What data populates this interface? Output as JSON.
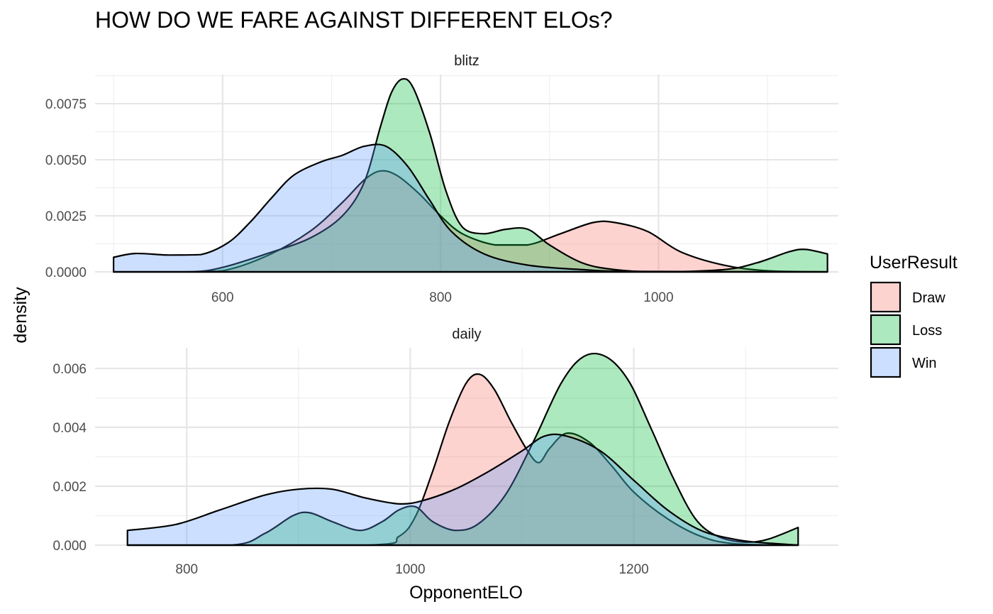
{
  "chart_data": {
    "type": "area",
    "subtype": "density",
    "title": "HOW DO WE FARE AGAINST DIFFERENT ELOs?",
    "xlabel": "OpponentELO",
    "ylabel": "density",
    "grid": true,
    "legend": {
      "title": "UserResult",
      "position": "right",
      "entries": [
        {
          "name": "Draw",
          "color": "#F8766D"
        },
        {
          "name": "Loss",
          "color": "#00BA38"
        },
        {
          "name": "Win",
          "color": "#619CFF"
        }
      ]
    },
    "panels": [
      {
        "name": "blitz",
        "xlim": [
          483,
          1165
        ],
        "ylim": [
          0,
          0.0088
        ],
        "x_ticks": [
          600,
          800,
          1000
        ],
        "y_ticks": [
          0,
          0.0025,
          0.005,
          0.0075
        ],
        "y_tick_labels": [
          "0.0000",
          "0.0025",
          "0.0050",
          "0.0075"
        ],
        "series": [
          {
            "name": "Draw",
            "points": [
              [
                500,
                0
              ],
              [
                560,
                0
              ],
              [
                600,
                5e-05
              ],
              [
                640,
                0.0007
              ],
              [
                680,
                0.0018
              ],
              [
                710,
                0.0031
              ],
              [
                730,
                0.0041
              ],
              [
                745,
                0.0045
              ],
              [
                760,
                0.0043
              ],
              [
                780,
                0.0035
              ],
              [
                800,
                0.0025
              ],
              [
                820,
                0.0017
              ],
              [
                850,
                0.0012
              ],
              [
                880,
                0.0012
              ],
              [
                910,
                0.0017
              ],
              [
                940,
                0.0022
              ],
              [
                960,
                0.0022
              ],
              [
                990,
                0.0018
              ],
              [
                1020,
                0.0009
              ],
              [
                1060,
                0.0003
              ],
              [
                1100,
                5e-05
              ],
              [
                1155,
                0
              ]
            ]
          },
          {
            "name": "Loss",
            "points": [
              [
                500,
                0
              ],
              [
                570,
                0
              ],
              [
                600,
                0.0002
              ],
              [
                640,
                0.0008
              ],
              [
                680,
                0.0015
              ],
              [
                710,
                0.0025
              ],
              [
                730,
                0.004
              ],
              [
                745,
                0.0065
              ],
              [
                755,
                0.008
              ],
              [
                765,
                0.0086
              ],
              [
                775,
                0.0082
              ],
              [
                790,
                0.0062
              ],
              [
                805,
                0.0036
              ],
              [
                820,
                0.002
              ],
              [
                840,
                0.0017
              ],
              [
                860,
                0.0019
              ],
              [
                880,
                0.0019
              ],
              [
                900,
                0.0012
              ],
              [
                930,
                0.0004
              ],
              [
                960,
                0.0001
              ],
              [
                1000,
                0
              ],
              [
                1060,
                0.0001
              ],
              [
                1090,
                0.0004
              ],
              [
                1120,
                0.0009
              ],
              [
                1135,
                0.001
              ],
              [
                1155,
                0.0008
              ]
            ]
          },
          {
            "name": "Win",
            "points": [
              [
                500,
                0.00065
              ],
              [
                520,
                0.00082
              ],
              [
                550,
                0.00075
              ],
              [
                580,
                0.00077
              ],
              [
                605,
                0.0013
              ],
              [
                625,
                0.0022
              ],
              [
                645,
                0.0033
              ],
              [
                665,
                0.0043
              ],
              [
                690,
                0.0049
              ],
              [
                710,
                0.0052
              ],
              [
                730,
                0.0056
              ],
              [
                750,
                0.0056
              ],
              [
                770,
                0.0047
              ],
              [
                790,
                0.0032
              ],
              [
                810,
                0.0018
              ],
              [
                840,
                0.0008
              ],
              [
                880,
                0.0003
              ],
              [
                930,
                0.0001
              ],
              [
                980,
                2e-05
              ],
              [
                1155,
                0
              ]
            ]
          }
        ]
      },
      {
        "name": "daily",
        "xlim": [
          718,
          1383
        ],
        "ylim": [
          0,
          0.0067
        ],
        "x_ticks": [
          800,
          1000,
          1200
        ],
        "y_ticks": [
          0,
          0.002,
          0.004,
          0.006
        ],
        "y_tick_labels": [
          "0.000",
          "0.002",
          "0.004",
          "0.006"
        ],
        "series": [
          {
            "name": "Draw",
            "points": [
              [
                747,
                0
              ],
              [
                960,
                0
              ],
              [
                990,
                0.0003
              ],
              [
                1005,
                0.001
              ],
              [
                1020,
                0.0025
              ],
              [
                1035,
                0.0042
              ],
              [
                1050,
                0.0055
              ],
              [
                1062,
                0.0058
              ],
              [
                1075,
                0.0053
              ],
              [
                1090,
                0.0042
              ],
              [
                1105,
                0.0032
              ],
              [
                1115,
                0.0028
              ],
              [
                1125,
                0.0033
              ],
              [
                1140,
                0.0038
              ],
              [
                1160,
                0.0035
              ],
              [
                1180,
                0.0027
              ],
              [
                1200,
                0.0018
              ],
              [
                1230,
                0.0009
              ],
              [
                1260,
                0.0003
              ],
              [
                1290,
                5e-05
              ],
              [
                1347,
                0
              ]
            ]
          },
          {
            "name": "Loss",
            "points": [
              [
                747,
                0
              ],
              [
                840,
                0
              ],
              [
                870,
                0.0004
              ],
              [
                895,
                0.001
              ],
              [
                910,
                0.0011
              ],
              [
                930,
                0.0008
              ],
              [
                955,
                0.0005
              ],
              [
                975,
                0.0008
              ],
              [
                990,
                0.0012
              ],
              [
                1005,
                0.0013
              ],
              [
                1020,
                0.0008
              ],
              [
                1040,
                0.0005
              ],
              [
                1060,
                0.0007
              ],
              [
                1085,
                0.0017
              ],
              [
                1110,
                0.0035
              ],
              [
                1135,
                0.0055
              ],
              [
                1155,
                0.0064
              ],
              [
                1175,
                0.0064
              ],
              [
                1195,
                0.0056
              ],
              [
                1215,
                0.004
              ],
              [
                1235,
                0.0023
              ],
              [
                1255,
                0.0009
              ],
              [
                1275,
                0.0003
              ],
              [
                1300,
                0.0001
              ],
              [
                1320,
                0.0002
              ],
              [
                1347,
                0.0006
              ]
            ]
          },
          {
            "name": "Win",
            "points": [
              [
                747,
                0.0005
              ],
              [
                790,
                0.0007
              ],
              [
                830,
                0.0012
              ],
              [
                870,
                0.0017
              ],
              [
                900,
                0.0019
              ],
              [
                930,
                0.0019
              ],
              [
                960,
                0.0016
              ],
              [
                990,
                0.0014
              ],
              [
                1010,
                0.0015
              ],
              [
                1040,
                0.0019
              ],
              [
                1070,
                0.0025
              ],
              [
                1100,
                0.0032
              ],
              [
                1120,
                0.0037
              ],
              [
                1140,
                0.0037
              ],
              [
                1170,
                0.0032
              ],
              [
                1200,
                0.0022
              ],
              [
                1230,
                0.0012
              ],
              [
                1260,
                0.0005
              ],
              [
                1290,
                0.0002
              ],
              [
                1310,
                0.0001
              ],
              [
                1347,
                0
              ]
            ]
          }
        ]
      }
    ]
  }
}
